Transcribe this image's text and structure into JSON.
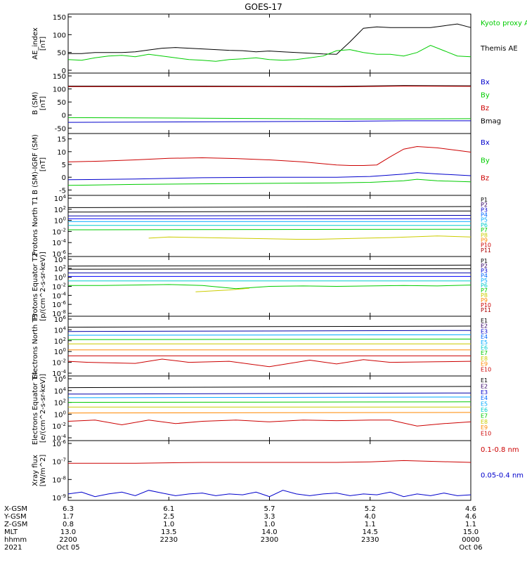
{
  "title": "GOES-17",
  "colors": {
    "black": "#000000",
    "green": "#00dd00",
    "blue": "#0000cc",
    "red": "#cc0000",
    "darkred": "#990000"
  },
  "chart_data": [
    {
      "type": "line",
      "ylabel": "AE_index [nT]",
      "yticks": [
        "150",
        "100",
        "50",
        "0"
      ],
      "ylim": [
        0,
        150
      ],
      "legend": [
        {
          "label": "Kyoto proxy AE",
          "color": "#00cc00"
        },
        {
          "label": "Themis AE",
          "color": "#000000"
        }
      ],
      "series": [
        {
          "name": "Themis AE",
          "color": "#000000",
          "x": [
            0,
            2,
            4,
            6,
            8,
            10,
            12,
            14,
            16,
            18,
            20,
            22,
            24,
            26,
            28,
            30,
            32,
            34,
            36,
            38,
            40,
            42,
            44,
            46,
            48,
            50,
            52,
            54,
            56,
            58,
            60
          ],
          "values": [
            47,
            47,
            50,
            50,
            50,
            52,
            57,
            62,
            64,
            62,
            60,
            58,
            56,
            55,
            52,
            54,
            52,
            50,
            48,
            46,
            45,
            80,
            118,
            122,
            120,
            120,
            120,
            120,
            125,
            130,
            120
          ]
        },
        {
          "name": "Kyoto proxy AE",
          "color": "#00cc00",
          "x": [
            0,
            2,
            4,
            6,
            8,
            10,
            12,
            14,
            16,
            18,
            20,
            22,
            24,
            26,
            28,
            30,
            32,
            34,
            36,
            38,
            40,
            42,
            44,
            46,
            48,
            50,
            52,
            54,
            56,
            58,
            60
          ],
          "values": [
            30,
            28,
            35,
            40,
            42,
            38,
            45,
            40,
            35,
            30,
            28,
            25,
            30,
            32,
            35,
            30,
            28,
            30,
            35,
            40,
            55,
            58,
            50,
            45,
            45,
            40,
            50,
            70,
            55,
            40,
            38
          ]
        }
      ]
    },
    {
      "type": "line",
      "ylabel": "B (SM) [nT]",
      "yticks": [
        "150",
        "100",
        "50",
        "0",
        "-50"
      ],
      "ylim": [
        -60,
        150
      ],
      "legend": [
        {
          "label": "Bx",
          "color": "#0000cc"
        },
        {
          "label": "By",
          "color": "#00cc00"
        },
        {
          "label": "Bz",
          "color": "#cc0000"
        },
        {
          "label": "Bmag",
          "color": "#000000"
        }
      ],
      "series": [
        {
          "name": "Bmag",
          "color": "#000000",
          "x": [
            0,
            20,
            40,
            50,
            60
          ],
          "values": [
            111,
            111,
            110,
            113,
            112
          ]
        },
        {
          "name": "Bz",
          "color": "#cc0000",
          "x": [
            0,
            20,
            40,
            50,
            60
          ],
          "values": [
            109,
            109,
            108,
            111,
            110
          ]
        },
        {
          "name": "By",
          "color": "#00cc00",
          "x": [
            0,
            20,
            40,
            50,
            60
          ],
          "values": [
            -10,
            -12,
            -15,
            -15,
            -14
          ]
        },
        {
          "name": "Bx",
          "color": "#0000cc",
          "x": [
            0,
            20,
            40,
            50,
            60
          ],
          "values": [
            -28,
            -26,
            -24,
            -22,
            -22
          ]
        }
      ]
    },
    {
      "type": "line",
      "ylabel": "B (SM)-IGRF (SM) [nT]",
      "yticks": [
        "15",
        "10",
        "5",
        "0",
        "-5"
      ],
      "ylim": [
        -6,
        16
      ],
      "legend": [
        {
          "label": "Bx",
          "color": "#0000cc"
        },
        {
          "label": "By",
          "color": "#00cc00"
        },
        {
          "label": "Bz",
          "color": "#cc0000"
        }
      ],
      "series": [
        {
          "name": "Bz",
          "color": "#cc0000",
          "x": [
            0,
            5,
            10,
            15,
            20,
            25,
            30,
            35,
            40,
            42,
            44,
            46,
            48,
            50,
            52,
            55,
            58,
            60
          ],
          "values": [
            6,
            6.3,
            6.8,
            7.4,
            7.6,
            7.3,
            6.8,
            6.0,
            4.8,
            4.6,
            4.6,
            4.8,
            8,
            11,
            12,
            11.5,
            10.5,
            9.8
          ]
        },
        {
          "name": "Bx",
          "color": "#0000cc",
          "x": [
            0,
            10,
            20,
            30,
            40,
            45,
            50,
            52,
            55,
            60
          ],
          "values": [
            -1,
            -0.7,
            -0.2,
            0,
            0,
            0.3,
            1.2,
            1.8,
            1.3,
            0.6
          ]
        },
        {
          "name": "By",
          "color": "#00cc00",
          "x": [
            0,
            10,
            20,
            30,
            40,
            45,
            50,
            52,
            55,
            60
          ],
          "values": [
            -3.2,
            -2.8,
            -2.6,
            -2.4,
            -2.2,
            -2,
            -1.4,
            -0.8,
            -1.4,
            -1.8
          ]
        }
      ]
    },
    {
      "type": "line",
      "ylog": true,
      "ylabel": "Protons North T1",
      "yticks": [
        "10^4",
        "10^2",
        "10^0",
        "10^-2",
        "10^-4",
        "10^-6"
      ],
      "ylim": [
        -6,
        4
      ],
      "channels": [
        "P1",
        "P2",
        "P3",
        "P4",
        "P5",
        "P6",
        "P7",
        "P8",
        "P9",
        "P10",
        "P11"
      ],
      "series": [
        {
          "name": "P1",
          "color": "#000000",
          "x": [
            0,
            60
          ],
          "values": [
            2.3,
            2.5
          ]
        },
        {
          "name": "P2",
          "color": "#000000",
          "x": [
            0,
            60
          ],
          "values": [
            1.5,
            1.7
          ]
        },
        {
          "name": "P3",
          "color": "#0000aa",
          "x": [
            0,
            60
          ],
          "values": [
            0.8,
            0.9
          ]
        },
        {
          "name": "P4",
          "color": "#0000ff",
          "x": [
            0,
            60
          ],
          "values": [
            0.3,
            0.3
          ]
        },
        {
          "name": "P5",
          "color": "#00aaff",
          "x": [
            0,
            60
          ],
          "values": [
            -0.2,
            -0.2
          ]
        },
        {
          "name": "P6",
          "color": "#00cccc",
          "x": [
            0,
            60
          ],
          "values": [
            -0.9,
            -0.9
          ]
        },
        {
          "name": "P7",
          "color": "#00cc00",
          "x": [
            0,
            60
          ],
          "values": [
            -1.7,
            -1.6
          ]
        },
        {
          "name": "P8",
          "color": "#cccc00",
          "x": [
            12,
            15,
            34,
            37,
            48,
            55,
            60
          ],
          "values": [
            -3.2,
            -3.0,
            -3.4,
            -3.4,
            -3.1,
            -2.8,
            -3.0
          ]
        }
      ]
    },
    {
      "type": "line",
      "ylog": true,
      "ylabel": "Protons Equator T2 [p/(cm^2-s-sr-keV)]",
      "yticks": [
        "10^4",
        "10^2",
        "10^0",
        "10^-2",
        "10^-4",
        "10^-6",
        "10^-8"
      ],
      "ylim": [
        -8,
        4
      ],
      "channels": [
        "P1",
        "P2",
        "P3",
        "P4",
        "P5",
        "P6",
        "P7",
        "P8",
        "P9",
        "P10",
        "P11"
      ],
      "series": [
        {
          "name": "P1",
          "color": "#000000",
          "x": [
            0,
            60
          ],
          "values": [
            2.5,
            2.7
          ]
        },
        {
          "name": "P2",
          "color": "#000000",
          "x": [
            0,
            60
          ],
          "values": [
            1.8,
            1.9
          ]
        },
        {
          "name": "P3",
          "color": "#0000aa",
          "x": [
            0,
            60
          ],
          "values": [
            1.0,
            1.0
          ]
        },
        {
          "name": "P4",
          "color": "#0000ff",
          "x": [
            0,
            60
          ],
          "values": [
            0.2,
            0.2
          ]
        },
        {
          "name": "P5",
          "color": "#00cccc",
          "x": [
            0,
            60
          ],
          "values": [
            -0.8,
            -0.8
          ]
        },
        {
          "name": "P6",
          "color": "#00cc00",
          "x": [
            0,
            5,
            10,
            15,
            20,
            25,
            30,
            35,
            40,
            45,
            50,
            55,
            60
          ],
          "values": [
            -1.8,
            -1.8,
            -1.7,
            -1.6,
            -1.8,
            -2.5,
            -2.0,
            -1.9,
            -2.0,
            -1.9,
            -1.8,
            -1.9,
            -1.7
          ]
        },
        {
          "name": "P7",
          "color": "#cccc00",
          "x": [
            19,
            24,
            27
          ],
          "values": [
            -3.2,
            -2.8,
            -2.4
          ]
        }
      ]
    },
    {
      "type": "line",
      "ylog": true,
      "ylabel": "Electrons North T3",
      "yticks": [
        "10^6",
        "10^4",
        "10^2",
        "10^0",
        "10^-2",
        "10^-4"
      ],
      "ylim": [
        -4,
        6
      ],
      "channels": [
        "E1",
        "E2",
        "E3",
        "E4",
        "E5",
        "E6",
        "E7",
        "E8",
        "E9",
        "E10"
      ],
      "series": [
        {
          "name": "E1",
          "color": "#000000",
          "x": [
            0,
            60
          ],
          "values": [
            4.5,
            4.7
          ]
        },
        {
          "name": "E2",
          "color": "#0000aa",
          "x": [
            0,
            60
          ],
          "values": [
            3.7,
            3.9
          ]
        },
        {
          "name": "E3",
          "color": "#00aaff",
          "x": [
            0,
            60
          ],
          "values": [
            3.0,
            3.1
          ]
        },
        {
          "name": "E4",
          "color": "#00cc00",
          "x": [
            0,
            60
          ],
          "values": [
            2.2,
            2.3
          ]
        },
        {
          "name": "E5",
          "color": "#cccc00",
          "x": [
            0,
            60
          ],
          "values": [
            1.4,
            1.4
          ]
        },
        {
          "name": "E6",
          "color": "#ff8800",
          "x": [
            0,
            60
          ],
          "values": [
            0.3,
            0.3
          ]
        },
        {
          "name": "E7",
          "color": "#cc0000",
          "x": [
            0,
            60
          ],
          "values": [
            -0.8,
            -0.8
          ]
        },
        {
          "name": "E8",
          "color": "#cc0000",
          "x": [
            0,
            3,
            10,
            14,
            18,
            24,
            30,
            36,
            40,
            44,
            48,
            55,
            60
          ],
          "values": [
            -1.8,
            -2.0,
            -2.2,
            -1.4,
            -2.0,
            -1.8,
            -2.8,
            -1.6,
            -2.3,
            -1.5,
            -2.0,
            -1.9,
            -1.8
          ]
        }
      ]
    },
    {
      "type": "line",
      "ylog": true,
      "ylabel": "Electrons Equator T4 [e/(cm^2-s-sr-keV)]",
      "yticks": [
        "10^6",
        "10^4",
        "10^2",
        "10^0",
        "10^-2",
        "10^-4"
      ],
      "ylim": [
        -4,
        6
      ],
      "channels": [
        "E1",
        "E2",
        "E3",
        "E4",
        "E5",
        "E6",
        "E7",
        "E8",
        "E9",
        "E10"
      ],
      "series": [
        {
          "name": "E1",
          "color": "#000000",
          "x": [
            0,
            60
          ],
          "values": [
            4.5,
            4.7
          ]
        },
        {
          "name": "E2",
          "color": "#0000aa",
          "x": [
            0,
            60
          ],
          "values": [
            3.4,
            3.6
          ]
        },
        {
          "name": "E3",
          "color": "#00aaff",
          "x": [
            0,
            60
          ],
          "values": [
            2.8,
            2.9
          ]
        },
        {
          "name": "E4",
          "color": "#00cc00",
          "x": [
            0,
            60
          ],
          "values": [
            2.0,
            2.1
          ]
        },
        {
          "name": "E5",
          "color": "#cccc00",
          "x": [
            0,
            60
          ],
          "values": [
            1.2,
            1.2
          ]
        },
        {
          "name": "E6",
          "color": "#ff8800",
          "x": [
            0,
            60
          ],
          "values": [
            0.2,
            0.3
          ]
        },
        {
          "name": "E7",
          "color": "#cc0000",
          "x": [
            0,
            4,
            8,
            12,
            16,
            20,
            25,
            30,
            35,
            40,
            45,
            48,
            52,
            56,
            60
          ],
          "values": [
            -1.2,
            -1.0,
            -1.8,
            -1.0,
            -1.6,
            -1.2,
            -1.0,
            -1.3,
            -1.0,
            -1.1,
            -1.0,
            -1.0,
            -2.0,
            -1.6,
            -1.3
          ]
        }
      ]
    },
    {
      "type": "line",
      "ylog": true,
      "ylabel": "Xray flux [W/m^2]",
      "yticks": [
        "10^-8",
        "10^-7",
        "10^-6",
        "10^-9"
      ],
      "ylim": [
        -9,
        -6
      ],
      "legend": [
        {
          "label": "0.1-0.8 nm",
          "color": "#cc0000"
        },
        {
          "label": "0.05-0.4 nm",
          "color": "#0000cc"
        }
      ],
      "series": [
        {
          "name": "0.1-0.8 nm",
          "color": "#cc0000",
          "x": [
            0,
            10,
            20,
            30,
            40,
            45,
            50,
            55,
            60
          ],
          "values": [
            -7.1,
            -7.1,
            -7.05,
            -7.05,
            -7.05,
            -7.02,
            -6.95,
            -7.0,
            -7.05
          ]
        },
        {
          "name": "0.05-0.4 nm",
          "color": "#0000cc",
          "x": [
            0,
            2,
            4,
            6,
            8,
            10,
            12,
            14,
            16,
            18,
            20,
            22,
            24,
            26,
            28,
            30,
            32,
            34,
            36,
            38,
            40,
            42,
            44,
            46,
            48,
            50,
            52,
            54,
            56,
            58,
            60
          ],
          "values": [
            -8.8,
            -8.7,
            -8.95,
            -8.8,
            -8.7,
            -8.9,
            -8.6,
            -8.75,
            -8.9,
            -8.8,
            -8.75,
            -8.9,
            -8.8,
            -8.85,
            -8.7,
            -8.95,
            -8.6,
            -8.8,
            -8.9,
            -8.8,
            -8.75,
            -8.9,
            -8.8,
            -8.85,
            -8.7,
            -8.95,
            -8.8,
            -8.9,
            -8.75,
            -8.9,
            -8.85
          ]
        }
      ]
    }
  ],
  "xaxis": {
    "row_labels": [
      "X-GSM",
      "Y-GSM",
      "Z-GSM",
      "MLT",
      "hhmm",
      "2021"
    ],
    "columns": [
      {
        "values": [
          "6.3",
          "1.7",
          "0.8",
          "13.0",
          "2200",
          "Oct 05"
        ]
      },
      {
        "values": [
          "6.1",
          "2.5",
          "1.0",
          "13.5",
          "2230",
          ""
        ]
      },
      {
        "values": [
          "5.7",
          "3.3",
          "1.0",
          "14.0",
          "2300",
          ""
        ]
      },
      {
        "values": [
          "5.2",
          "4.0",
          "1.1",
          "14.5",
          "2330",
          ""
        ]
      },
      {
        "values": [
          "4.6",
          "4.6",
          "1.1",
          "15.0",
          "0000",
          "Oct 06"
        ]
      }
    ]
  }
}
